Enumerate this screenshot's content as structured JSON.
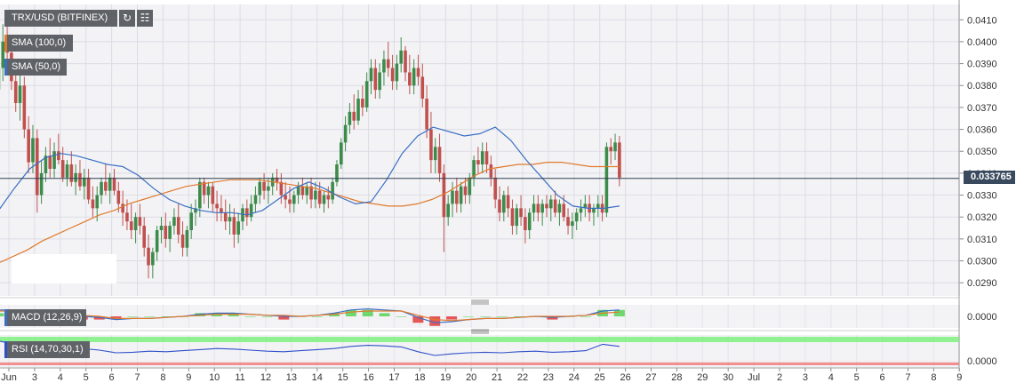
{
  "header": {
    "symbol_label": "TRX/USD (BITFINEX)",
    "refresh_icon": "refresh-icon",
    "indicators_icon": "indicators-icon"
  },
  "legend": {
    "sma100": "SMA (100,0)",
    "sma50": "SMA (50,0)",
    "macd": "MACD (12,26,9)",
    "rsi": "RSI (14,70,30,1)"
  },
  "colors": {
    "bull": "#3d8b4a",
    "bear": "#c0504d",
    "sma100": "#e07a2c",
    "sma50": "#3a6fc4",
    "macd_line": "#3a6fc4",
    "signal_line": "#e07a2c",
    "rsi_line": "#2f4fc8",
    "rsi_overbought": "#7ef07e",
    "rsi_oversold": "#f07e7e",
    "price_tag": "#3a4a5e"
  },
  "current_price": "0.033765",
  "macd_zero_label": "0.0000",
  "rsi_zero_label": "0.0000",
  "chart_data": {
    "type": "candlestick",
    "title": "TRX/USD (BITFINEX)",
    "y_ticks": [
      "0.0290",
      "0.0300",
      "0.0310",
      "0.0320",
      "0.0330",
      "0.0340",
      "0.0350",
      "0.0360",
      "0.0370",
      "0.0380",
      "0.0390",
      "0.0400",
      "0.0410"
    ],
    "ylim": [
      0.0284,
      0.0417
    ],
    "x_ticks": [
      "Jun",
      "3",
      "4",
      "5",
      "6",
      "7",
      "8",
      "9",
      "10",
      "11",
      "12",
      "13",
      "14",
      "15",
      "16",
      "17",
      "18",
      "19",
      "20",
      "21",
      "22",
      "23",
      "24",
      "25",
      "26",
      "27",
      "28",
      "29",
      "30",
      "Jul",
      "2",
      "3",
      "4",
      "5",
      "6",
      "7",
      "8",
      "9"
    ],
    "current_price": 0.033765,
    "candles_per_day": 6,
    "candles": [
      [
        0.0378,
        0.0392,
        0.037,
        0.0388
      ],
      [
        0.0388,
        0.0408,
        0.0382,
        0.04
      ],
      [
        0.04,
        0.041,
        0.0388,
        0.0395
      ],
      [
        0.0395,
        0.0398,
        0.0378,
        0.0382
      ],
      [
        0.0382,
        0.039,
        0.0368,
        0.0372
      ],
      [
        0.0372,
        0.0386,
        0.0364,
        0.038
      ],
      [
        0.038,
        0.0384,
        0.0356,
        0.036
      ],
      [
        0.036,
        0.0366,
        0.034,
        0.0345
      ],
      [
        0.0345,
        0.0362,
        0.034,
        0.0356
      ],
      [
        0.0356,
        0.036,
        0.0322,
        0.033
      ],
      [
        0.033,
        0.0346,
        0.0326,
        0.034
      ],
      [
        0.034,
        0.0352,
        0.0336,
        0.0348
      ],
      [
        0.0348,
        0.0356,
        0.0338,
        0.0342
      ],
      [
        0.0342,
        0.0354,
        0.0338,
        0.035
      ],
      [
        0.035,
        0.0358,
        0.0344,
        0.0346
      ],
      [
        0.0346,
        0.0352,
        0.0336,
        0.0338
      ],
      [
        0.0338,
        0.0346,
        0.0334,
        0.0344
      ],
      [
        0.0344,
        0.035,
        0.0334,
        0.0336
      ],
      [
        0.0336,
        0.0344,
        0.033,
        0.034
      ],
      [
        0.034,
        0.0346,
        0.0332,
        0.0334
      ],
      [
        0.0334,
        0.0342,
        0.0328,
        0.0338
      ],
      [
        0.0338,
        0.0342,
        0.0326,
        0.0328
      ],
      [
        0.0328,
        0.0334,
        0.032,
        0.0324
      ],
      [
        0.0324,
        0.0334,
        0.0318,
        0.033
      ],
      [
        0.033,
        0.0338,
        0.0326,
        0.0336
      ],
      [
        0.0336,
        0.0344,
        0.033,
        0.0332
      ],
      [
        0.0332,
        0.034,
        0.0326,
        0.0338
      ],
      [
        0.0338,
        0.0342,
        0.033,
        0.0332
      ],
      [
        0.0332,
        0.0336,
        0.0322,
        0.0326
      ],
      [
        0.0326,
        0.0332,
        0.0316,
        0.0322
      ],
      [
        0.0322,
        0.0328,
        0.0314,
        0.0318
      ],
      [
        0.0318,
        0.0326,
        0.031,
        0.0314
      ],
      [
        0.0314,
        0.0322,
        0.0308,
        0.032
      ],
      [
        0.032,
        0.0326,
        0.0312,
        0.0316
      ],
      [
        0.0316,
        0.032,
        0.0302,
        0.0306
      ],
      [
        0.0306,
        0.0312,
        0.0292,
        0.0298
      ],
      [
        0.0298,
        0.0306,
        0.0292,
        0.0304
      ],
      [
        0.0304,
        0.0316,
        0.03,
        0.0314
      ],
      [
        0.0314,
        0.032,
        0.0308,
        0.0316
      ],
      [
        0.0316,
        0.0322,
        0.0306,
        0.031
      ],
      [
        0.031,
        0.0318,
        0.0304,
        0.0316
      ],
      [
        0.0316,
        0.0324,
        0.0312,
        0.032
      ],
      [
        0.032,
        0.0326,
        0.0308,
        0.0312
      ],
      [
        0.0312,
        0.0318,
        0.0302,
        0.0306
      ],
      [
        0.0306,
        0.0316,
        0.0302,
        0.0314
      ],
      [
        0.0314,
        0.0326,
        0.031,
        0.0322
      ],
      [
        0.0322,
        0.0328,
        0.0316,
        0.0324
      ],
      [
        0.0324,
        0.0338,
        0.032,
        0.0336
      ],
      [
        0.0336,
        0.0338,
        0.0326,
        0.033
      ],
      [
        0.033,
        0.0336,
        0.0324,
        0.0334
      ],
      [
        0.0334,
        0.0336,
        0.0322,
        0.0326
      ],
      [
        0.0326,
        0.0332,
        0.0318,
        0.0324
      ],
      [
        0.0324,
        0.033,
        0.0318,
        0.0322
      ],
      [
        0.0322,
        0.0328,
        0.0314,
        0.0318
      ],
      [
        0.0318,
        0.0326,
        0.0312,
        0.032
      ],
      [
        0.032,
        0.0324,
        0.0306,
        0.0312
      ],
      [
        0.0312,
        0.0322,
        0.0308,
        0.0318
      ],
      [
        0.0318,
        0.0326,
        0.0314,
        0.0324
      ],
      [
        0.0324,
        0.0328,
        0.0316,
        0.032
      ],
      [
        0.032,
        0.033,
        0.0318,
        0.0326
      ],
      [
        0.0326,
        0.0334,
        0.0322,
        0.033
      ],
      [
        0.033,
        0.0338,
        0.0326,
        0.0336
      ],
      [
        0.0336,
        0.034,
        0.0328,
        0.0332
      ],
      [
        0.0332,
        0.0338,
        0.0326,
        0.0334
      ],
      [
        0.0334,
        0.034,
        0.033,
        0.0338
      ],
      [
        0.0338,
        0.0342,
        0.0332,
        0.0336
      ],
      [
        0.0336,
        0.034,
        0.0326,
        0.033
      ],
      [
        0.033,
        0.0336,
        0.0324,
        0.0328
      ],
      [
        0.0328,
        0.0334,
        0.0322,
        0.0326
      ],
      [
        0.0326,
        0.0332,
        0.0322,
        0.033
      ],
      [
        0.033,
        0.0336,
        0.0326,
        0.0334
      ],
      [
        0.0334,
        0.0338,
        0.0328,
        0.033
      ],
      [
        0.033,
        0.0336,
        0.0326,
        0.0334
      ],
      [
        0.0334,
        0.0338,
        0.0324,
        0.0328
      ],
      [
        0.0328,
        0.0336,
        0.0324,
        0.0332
      ],
      [
        0.0332,
        0.0336,
        0.0324,
        0.0326
      ],
      [
        0.0326,
        0.0332,
        0.0322,
        0.033
      ],
      [
        0.033,
        0.0334,
        0.0324,
        0.0328
      ],
      [
        0.0328,
        0.0338,
        0.0326,
        0.0336
      ],
      [
        0.0336,
        0.0346,
        0.0334,
        0.0344
      ],
      [
        0.0344,
        0.0356,
        0.0342,
        0.0354
      ],
      [
        0.0354,
        0.0366,
        0.035,
        0.0362
      ],
      [
        0.0362,
        0.0372,
        0.0358,
        0.0368
      ],
      [
        0.0368,
        0.0376,
        0.036,
        0.0364
      ],
      [
        0.0364,
        0.0378,
        0.0362,
        0.0374
      ],
      [
        0.0374,
        0.038,
        0.0366,
        0.037
      ],
      [
        0.037,
        0.0386,
        0.0368,
        0.0382
      ],
      [
        0.0382,
        0.0392,
        0.0376,
        0.0388
      ],
      [
        0.0388,
        0.0392,
        0.0374,
        0.0378
      ],
      [
        0.0378,
        0.039,
        0.0374,
        0.0386
      ],
      [
        0.0386,
        0.0396,
        0.038,
        0.0392
      ],
      [
        0.0392,
        0.04,
        0.0384,
        0.0388
      ],
      [
        0.0388,
        0.0394,
        0.0378,
        0.0382
      ],
      [
        0.0382,
        0.0394,
        0.0378,
        0.039
      ],
      [
        0.039,
        0.0402,
        0.0386,
        0.0396
      ],
      [
        0.0396,
        0.0398,
        0.0382,
        0.0386
      ],
      [
        0.0386,
        0.0394,
        0.0376,
        0.038
      ],
      [
        0.038,
        0.0392,
        0.0376,
        0.0388
      ],
      [
        0.0388,
        0.0394,
        0.038,
        0.0384
      ],
      [
        0.0384,
        0.039,
        0.037,
        0.0374
      ],
      [
        0.0374,
        0.038,
        0.0356,
        0.036
      ],
      [
        0.036,
        0.0368,
        0.034,
        0.0346
      ],
      [
        0.0346,
        0.0356,
        0.034,
        0.0352
      ],
      [
        0.0352,
        0.0358,
        0.0336,
        0.034
      ],
      [
        0.034,
        0.0344,
        0.0304,
        0.032
      ],
      [
        0.032,
        0.033,
        0.0316,
        0.0326
      ],
      [
        0.0326,
        0.0336,
        0.032,
        0.0332
      ],
      [
        0.0332,
        0.0338,
        0.0322,
        0.0326
      ],
      [
        0.0326,
        0.0336,
        0.0322,
        0.0334
      ],
      [
        0.0334,
        0.0338,
        0.0326,
        0.033
      ],
      [
        0.033,
        0.034,
        0.0326,
        0.0338
      ],
      [
        0.0338,
        0.0348,
        0.0334,
        0.0346
      ],
      [
        0.0346,
        0.0352,
        0.034,
        0.0344
      ],
      [
        0.0344,
        0.0354,
        0.034,
        0.035
      ],
      [
        0.035,
        0.0354,
        0.034,
        0.0344
      ],
      [
        0.0344,
        0.0348,
        0.0334,
        0.0338
      ],
      [
        0.0338,
        0.0342,
        0.0324,
        0.0328
      ],
      [
        0.0328,
        0.0334,
        0.0318,
        0.0322
      ],
      [
        0.0322,
        0.0332,
        0.0318,
        0.033
      ],
      [
        0.033,
        0.0334,
        0.032,
        0.0324
      ],
      [
        0.0324,
        0.0328,
        0.0312,
        0.0316
      ],
      [
        0.0316,
        0.0326,
        0.0312,
        0.0324
      ],
      [
        0.0324,
        0.033,
        0.0316,
        0.032
      ],
      [
        0.032,
        0.0324,
        0.0308,
        0.0314
      ],
      [
        0.0314,
        0.0324,
        0.031,
        0.0322
      ],
      [
        0.0322,
        0.033,
        0.0318,
        0.0326
      ],
      [
        0.0326,
        0.033,
        0.0318,
        0.0322
      ],
      [
        0.0322,
        0.0328,
        0.0316,
        0.0326
      ],
      [
        0.0326,
        0.033,
        0.032,
        0.0324
      ],
      [
        0.0324,
        0.033,
        0.0318,
        0.0328
      ],
      [
        0.0328,
        0.0332,
        0.032,
        0.0322
      ],
      [
        0.0322,
        0.0328,
        0.0316,
        0.0326
      ],
      [
        0.0326,
        0.033,
        0.0318,
        0.032
      ],
      [
        0.032,
        0.0324,
        0.0312,
        0.0316
      ],
      [
        0.0316,
        0.0322,
        0.031,
        0.0318
      ],
      [
        0.0318,
        0.0324,
        0.0314,
        0.0322
      ],
      [
        0.0322,
        0.0328,
        0.0318,
        0.0324
      ],
      [
        0.0324,
        0.033,
        0.032,
        0.0326
      ],
      [
        0.0326,
        0.033,
        0.0318,
        0.0322
      ],
      [
        0.0322,
        0.0326,
        0.0316,
        0.0324
      ],
      [
        0.0324,
        0.033,
        0.032,
        0.0326
      ],
      [
        0.0326,
        0.033,
        0.0318,
        0.0322
      ],
      [
        0.0322,
        0.0354,
        0.032,
        0.0352
      ],
      [
        0.0352,
        0.0356,
        0.0344,
        0.035
      ],
      [
        0.035,
        0.0358,
        0.0346,
        0.0354
      ],
      [
        0.0354,
        0.0357,
        0.0334,
        0.0338
      ]
    ],
    "sma100": [
      0.0299,
      0.0302,
      0.0305,
      0.0309,
      0.0312,
      0.0315,
      0.0318,
      0.0321,
      0.0323,
      0.0326,
      0.0328,
      0.033,
      0.0332,
      0.0334,
      0.0335,
      0.0336,
      0.0337,
      0.0337,
      0.0337,
      0.0336,
      0.0335,
      0.0334,
      0.0333,
      0.0331,
      0.0329,
      0.0327,
      0.0326,
      0.0325,
      0.0325,
      0.0326,
      0.0328,
      0.0331,
      0.0335,
      0.0339,
      0.0342,
      0.0343,
      0.0344,
      0.0344,
      0.0345,
      0.0345,
      0.0344,
      0.0343,
      0.0343,
      0.0343
    ],
    "sma50": [
      0.0323,
      0.0333,
      0.0342,
      0.0347,
      0.0349,
      0.0348,
      0.0346,
      0.0344,
      0.0343,
      0.0339,
      0.0333,
      0.0328,
      0.0325,
      0.0323,
      0.0322,
      0.0322,
      0.0321,
      0.0323,
      0.0328,
      0.0333,
      0.0336,
      0.0333,
      0.0329,
      0.0326,
      0.0327,
      0.0337,
      0.0349,
      0.0357,
      0.0361,
      0.0359,
      0.0357,
      0.0358,
      0.0361,
      0.0355,
      0.0346,
      0.0338,
      0.033,
      0.0325,
      0.0324,
      0.0324,
      0.0325
    ],
    "macd": {
      "zero_label": "0.0000",
      "macd_line": [
        0.0006,
        0.0006,
        0.0004,
        0.0002,
        0.0001,
        0.0,
        -0.0001,
        -0.0003,
        -0.0002,
        -0.0002,
        -0.0001,
        0.0,
        0.0002,
        0.0003,
        0.0003,
        0.0002,
        0.0001,
        0.0,
        0.0,
        0.0001,
        0.0003,
        0.0006,
        0.0007,
        0.0006,
        0.0005,
        -0.0001,
        -0.0006,
        -0.0005,
        -0.0003,
        -0.0002,
        -0.0002,
        -0.0001,
        0.0,
        -0.0001,
        0.0,
        0.0001,
        0.0005,
        0.0006
      ],
      "signal_line": [
        0.0005,
        0.0005,
        0.0004,
        0.0003,
        0.0002,
        0.0001,
        0.0,
        -0.0002,
        -0.0002,
        -0.0002,
        -0.0001,
        0.0,
        0.0001,
        0.0002,
        0.0002,
        0.0002,
        0.0001,
        0.0001,
        0.0,
        0.0001,
        0.0002,
        0.0004,
        0.0005,
        0.0005,
        0.0005,
        0.0001,
        -0.0003,
        -0.0004,
        -0.0003,
        -0.0002,
        -0.0002,
        -0.0001,
        0.0,
        0.0,
        0.0,
        0.0001,
        0.0003,
        0.0004
      ]
    },
    "rsi": {
      "zero_label": "0.0000",
      "levels": [
        70,
        30
      ],
      "values": [
        72,
        66,
        60,
        62,
        60,
        58,
        55,
        50,
        51,
        53,
        52,
        54,
        56,
        58,
        57,
        55,
        53,
        52,
        54,
        56,
        58,
        62,
        64,
        63,
        61,
        52,
        45,
        48,
        50,
        51,
        50,
        52,
        53,
        51,
        52,
        54,
        66,
        62
      ]
    }
  }
}
